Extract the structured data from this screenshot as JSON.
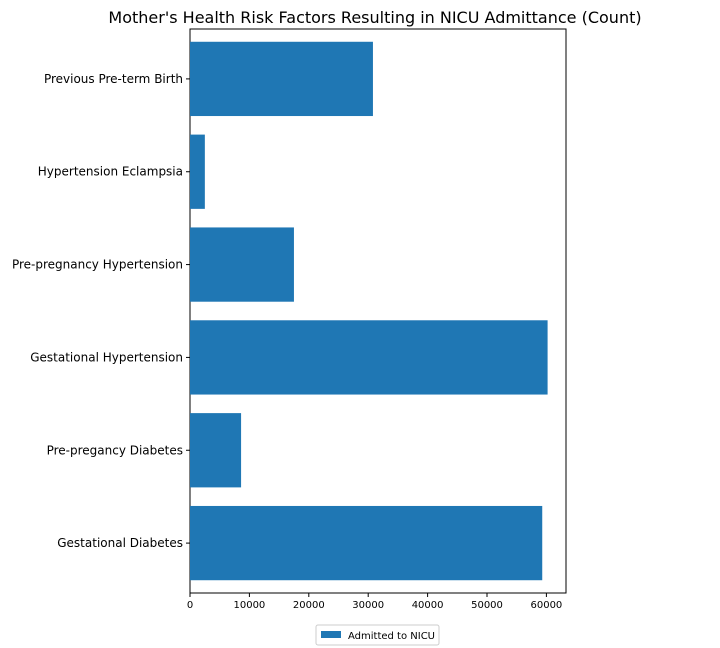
{
  "chart_data": {
    "type": "bar",
    "orientation": "horizontal",
    "title": "Mother's Health Risk Factors Resulting in NICU Admittance (Count)",
    "xlabel": "",
    "ylabel": "",
    "categories": [
      "Gestational Diabetes",
      "Pre-pregancy Diabetes",
      "Gestational Hypertension",
      "Pre-pregnancy Hypertension",
      "Hypertension Eclampsia",
      "Previous Pre-term Birth"
    ],
    "series": [
      {
        "name": "Admitted to NICU",
        "color": "#1f77b4",
        "values": [
          59300,
          8600,
          60200,
          17500,
          2500,
          30800
        ]
      }
    ],
    "xlim": [
      0,
      63300
    ],
    "xticks": [
      0,
      10000,
      20000,
      30000,
      40000,
      50000,
      60000
    ],
    "xtick_labels": [
      "0",
      "10000",
      "20000",
      "30000",
      "40000",
      "50000",
      "60000"
    ],
    "grid": false,
    "legend": {
      "placement": "bottom-center",
      "entries": [
        "Admitted to NICU"
      ]
    }
  }
}
